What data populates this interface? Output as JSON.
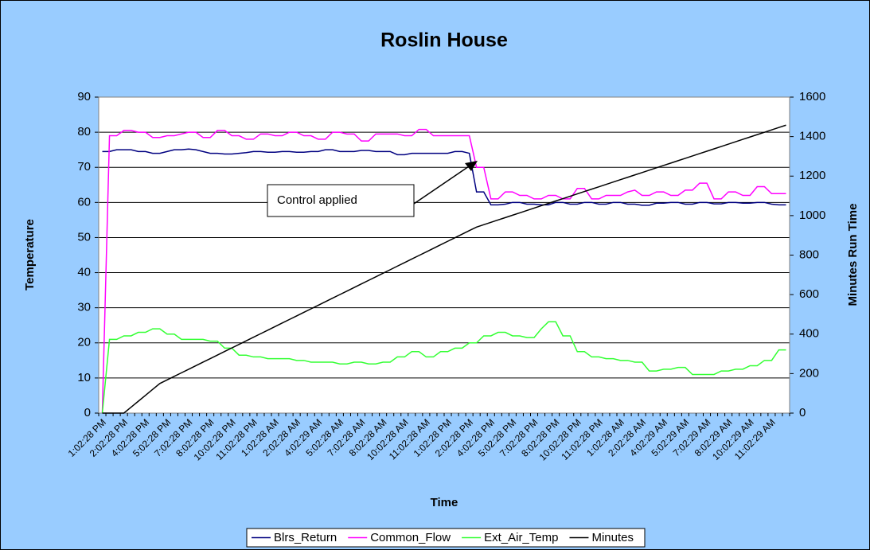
{
  "chart_data": {
    "type": "line",
    "title": "Roslin House",
    "xlabel": "Time",
    "ylabel": "Temperature",
    "y2label": "Minutes Run Time",
    "annotation": "Control applied",
    "legend": "bottom",
    "grid": true,
    "ylim": [
      0,
      90
    ],
    "yticks": [
      0,
      10,
      20,
      30,
      40,
      50,
      60,
      70,
      80,
      90
    ],
    "y2lim": [
      0,
      1600
    ],
    "y2ticks": [
      0,
      200,
      400,
      600,
      800,
      1000,
      1200,
      1400,
      1600
    ],
    "categories": [
      "1:02:28 PM",
      null,
      null,
      "2:02:28 PM",
      null,
      null,
      "4:02:28 PM",
      null,
      null,
      "5:02:28 PM",
      null,
      null,
      "7:02:28 PM",
      null,
      null,
      "8:02:28 PM",
      null,
      null,
      "10:02:28 PM",
      null,
      null,
      "11:02:28 PM",
      null,
      null,
      "1:02:28 AM",
      null,
      null,
      "2:02:28 AM",
      null,
      null,
      "4:02:29 AM",
      null,
      null,
      "5:02:28 AM",
      null,
      null,
      "7:02:28 AM",
      null,
      null,
      "8:02:28 AM",
      null,
      null,
      "10:02:28 AM",
      null,
      null,
      "11:02:28 AM",
      null,
      null,
      "1:02:28 PM",
      null,
      null,
      "2:02:28 PM",
      null,
      null,
      "4:02:28 PM",
      null,
      null,
      "5:02:28 PM",
      null,
      null,
      "7:02:28 PM",
      null,
      null,
      "8:02:28 PM",
      null,
      null,
      "10:02:28 PM",
      null,
      null,
      "11:02:28 PM",
      null,
      null,
      "1:02:28 AM",
      null,
      null,
      "2:02:28 AM",
      null,
      null,
      "4:02:29 AM",
      null,
      null,
      "5:02:29 AM",
      null,
      null,
      "7:02:29 AM",
      null,
      null,
      "8:02:29 AM",
      null,
      null,
      "10:02:29 AM",
      null,
      null,
      "11:02:29 AM",
      null,
      null
    ],
    "series": [
      {
        "name": "Blrs_Return",
        "color": "#000080",
        "values": [
          74.5,
          74.5,
          75,
          75,
          75,
          74.5,
          74.5,
          74,
          74,
          74.5,
          75,
          75,
          75.2,
          75,
          74.5,
          74,
          74,
          73.8,
          73.8,
          74,
          74.2,
          74.5,
          74.5,
          74.3,
          74.3,
          74.5,
          74.5,
          74.3,
          74.3,
          74.5,
          74.5,
          75,
          75,
          74.5,
          74.5,
          74.5,
          74.8,
          74.8,
          74.5,
          74.5,
          74.5,
          73.6,
          73.6,
          74,
          74,
          74,
          74,
          74,
          74,
          74.5,
          74.5,
          74,
          63,
          63,
          59.3,
          59.3,
          59.5,
          60,
          60,
          59.5,
          59.5,
          59.3,
          59.3,
          60,
          60,
          59.5,
          59.5,
          60,
          60,
          59.5,
          59.5,
          60,
          60,
          59.5,
          59.5,
          59.2,
          59.2,
          59.8,
          59.8,
          60,
          60,
          59.5,
          59.5,
          60,
          60,
          59.6,
          59.6,
          60,
          60,
          59.8,
          59.8,
          60,
          60,
          59.5,
          59.3,
          59.3
        ]
      },
      {
        "name": "Common_Flow",
        "color": "#ff00ff",
        "values": [
          0,
          79,
          79,
          80.5,
          80.5,
          80,
          80,
          78.5,
          78.5,
          79,
          79,
          79.5,
          80,
          80,
          78.5,
          78.5,
          80.5,
          80.5,
          79,
          79,
          78,
          78,
          79.5,
          79.5,
          79,
          79,
          80,
          80,
          79,
          79,
          78,
          78,
          80,
          80,
          79.5,
          79.5,
          77.5,
          77.5,
          79.5,
          79.5,
          79.5,
          79.5,
          79,
          79,
          80.8,
          80.8,
          79,
          79,
          79,
          79,
          79,
          79,
          70,
          70,
          61,
          61,
          63,
          63,
          62,
          62,
          61,
          61,
          62,
          62,
          61,
          61,
          64,
          64,
          61,
          61,
          62,
          62,
          62,
          63,
          63.5,
          62,
          62,
          63,
          63,
          62,
          62,
          63.5,
          63.5,
          65.5,
          65.5,
          61,
          61,
          63,
          63,
          62,
          62,
          64.5,
          64.5,
          62.5,
          62.5,
          62.5
        ]
      },
      {
        "name": "Ext_Air_Temp",
        "color": "#33ff33",
        "values": [
          0,
          21,
          21,
          22,
          22,
          23,
          23,
          24,
          24,
          22.5,
          22.5,
          21,
          21,
          21,
          21,
          20.5,
          20.5,
          18.5,
          18.5,
          16.5,
          16.5,
          16,
          16,
          15.5,
          15.5,
          15.5,
          15.5,
          15,
          15,
          14.5,
          14.5,
          14.5,
          14.5,
          14,
          14,
          14.5,
          14.5,
          14,
          14,
          14.5,
          14.5,
          16,
          16,
          17.5,
          17.5,
          16,
          16,
          17.5,
          17.5,
          18.5,
          18.5,
          20,
          20,
          22,
          22,
          23,
          23,
          22,
          22,
          21.5,
          21.5,
          24,
          26,
          26,
          22,
          22,
          17.5,
          17.5,
          16,
          16,
          15.5,
          15.5,
          15,
          15,
          14.5,
          14.5,
          12,
          12,
          12.5,
          12.5,
          13,
          13,
          11,
          11,
          11,
          11,
          12,
          12,
          12.5,
          12.5,
          13.5,
          13.5,
          15,
          15,
          18,
          18
        ]
      },
      {
        "name": "Minutes",
        "color": "#000000",
        "axis": "y2",
        "values": [
          0,
          0,
          0,
          0,
          30,
          60,
          90,
          120,
          150,
          168,
          186,
          204,
          222,
          240,
          258,
          276,
          294,
          312,
          330,
          348,
          366,
          384,
          402,
          420,
          438,
          456,
          474,
          492,
          510,
          528,
          546,
          564,
          582,
          600,
          618,
          636,
          654,
          672,
          690,
          708,
          726,
          744,
          762,
          780,
          798,
          816,
          834,
          852,
          870,
          888,
          906,
          924,
          942,
          954,
          966,
          978,
          990,
          1002,
          1014,
          1026,
          1038,
          1050,
          1062,
          1074,
          1086,
          1098,
          1110,
          1122,
          1134,
          1146,
          1158,
          1170,
          1182,
          1194,
          1206,
          1218,
          1230,
          1242,
          1254,
          1266,
          1278,
          1290,
          1302,
          1314,
          1326,
          1338,
          1350,
          1362,
          1374,
          1386,
          1398,
          1410,
          1422,
          1434,
          1446,
          1458
        ]
      }
    ]
  }
}
